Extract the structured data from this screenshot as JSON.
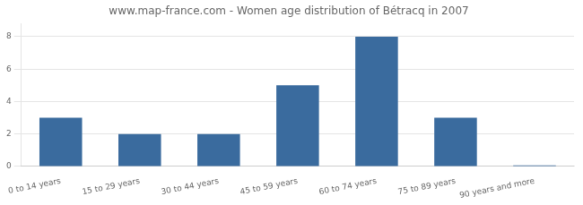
{
  "chart_data": {
    "type": "bar",
    "title": "www.map-france.com - Women age distribution of Bétracq in 2007",
    "categories": [
      "0 to 14 years",
      "15 to 29 years",
      "30 to 44 years",
      "45 to 59 years",
      "60 to 74 years",
      "75 to 89 years",
      "90 years and more"
    ],
    "values": [
      3,
      2,
      2,
      5,
      8,
      3,
      0.07
    ],
    "color": "#3a6b9e",
    "ylim": [
      0,
      8.8
    ],
    "yticks": [
      0,
      2,
      4,
      6,
      8
    ],
    "grid": true
  }
}
